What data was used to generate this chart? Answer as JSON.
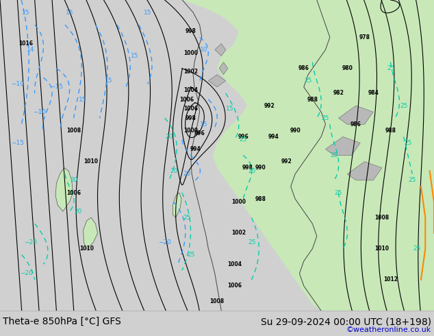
{
  "title_left": "Theta-e 850hPa [°C] GFS",
  "title_right": "Su 29-09-2024 00:00 UTC (18+198)",
  "credit": "©weatheronline.co.uk",
  "bg_color": "#d0d0d0",
  "land_green": "#c8e8b8",
  "land_gray": "#b8b8b8",
  "fig_width": 6.34,
  "fig_height": 4.9,
  "dpi": 100,
  "bottom_bar_color": "#ffffff",
  "title_fontsize": 10,
  "credit_color": "#0000cc",
  "credit_fontsize": 8,
  "isobar_color": "#000000",
  "theta_blue_color": "#3399ff",
  "theta_cyan_color": "#00ccaa",
  "orange_color": "#ff8800"
}
